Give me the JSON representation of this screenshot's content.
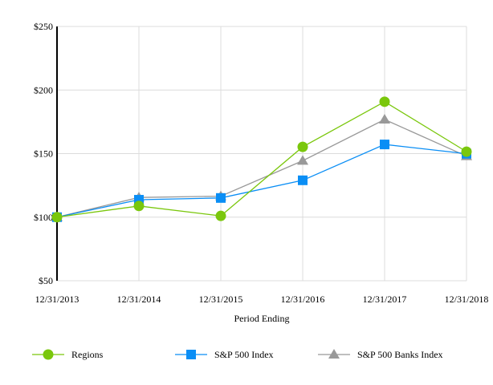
{
  "chart_data": {
    "type": "line",
    "xlabel": "Period Ending",
    "ylabel": "",
    "categories": [
      "12/31/2013",
      "12/31/2014",
      "12/31/2015",
      "12/31/2016",
      "12/31/2017",
      "12/31/2018"
    ],
    "yticks": [
      "$50",
      "$100",
      "$150",
      "$200",
      "$250"
    ],
    "ylim": [
      50,
      250
    ],
    "grid": true,
    "legend_position": "bottom",
    "series": [
      {
        "name": "Regions",
        "marker": "circle",
        "color": "#7ac70c",
        "values": [
          100,
          108.8,
          101,
          155.3,
          190.8,
          151.5
        ]
      },
      {
        "name": "S&P 500 Index",
        "marker": "square",
        "color": "#0a8ef5",
        "values": [
          100,
          113.7,
          115.1,
          129,
          157.2,
          149.9
        ]
      },
      {
        "name": "S&P 500 Banks Index",
        "marker": "triangle",
        "color": "#999999",
        "values": [
          100,
          115.5,
          116.5,
          144.4,
          176.8,
          148
        ]
      }
    ]
  }
}
